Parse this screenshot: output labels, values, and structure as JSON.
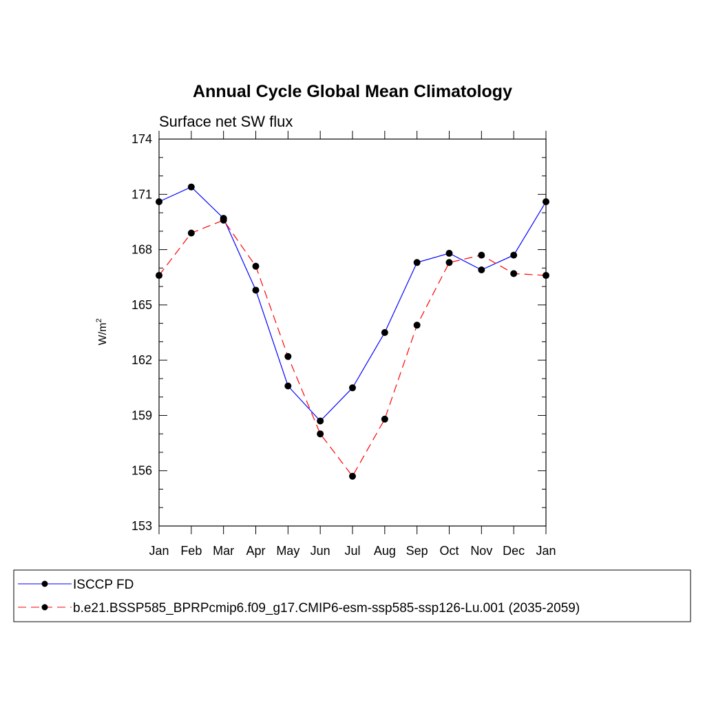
{
  "chart_data": {
    "type": "line",
    "title": "Annual Cycle Global Mean Climatology",
    "subtitle": "Surface net SW flux",
    "ylabel": "W/m",
    "ylabel_sup": "2",
    "xlabel": "",
    "ylim": [
      153,
      174
    ],
    "yticks": [
      153,
      156,
      159,
      162,
      165,
      168,
      171,
      174
    ],
    "ytick_labels": [
      "153",
      "156",
      "159",
      "162",
      "165",
      "168",
      "171",
      "174"
    ],
    "categories": [
      "Jan",
      "Feb",
      "Mar",
      "Apr",
      "May",
      "Jun",
      "Jul",
      "Aug",
      "Sep",
      "Oct",
      "Nov",
      "Dec",
      "Jan"
    ],
    "series": [
      {
        "name": "ISCCP FD",
        "color": "#0000ff",
        "dash": "solid",
        "values": [
          170.6,
          171.4,
          169.7,
          165.8,
          160.6,
          158.7,
          160.5,
          163.5,
          167.3,
          167.8,
          166.9,
          167.7,
          170.6
        ]
      },
      {
        "name": "b.e21.BSSP585_BPRPcmip6.f09_g17.CMIP6-esm-ssp585-ssp126-Lu.001 (2035-2059)",
        "color": "#ff0000",
        "dash": "dashed",
        "values": [
          166.6,
          168.9,
          169.6,
          167.1,
          162.2,
          158.0,
          155.7,
          158.8,
          163.9,
          167.3,
          167.7,
          166.7,
          166.6
        ]
      }
    ]
  }
}
